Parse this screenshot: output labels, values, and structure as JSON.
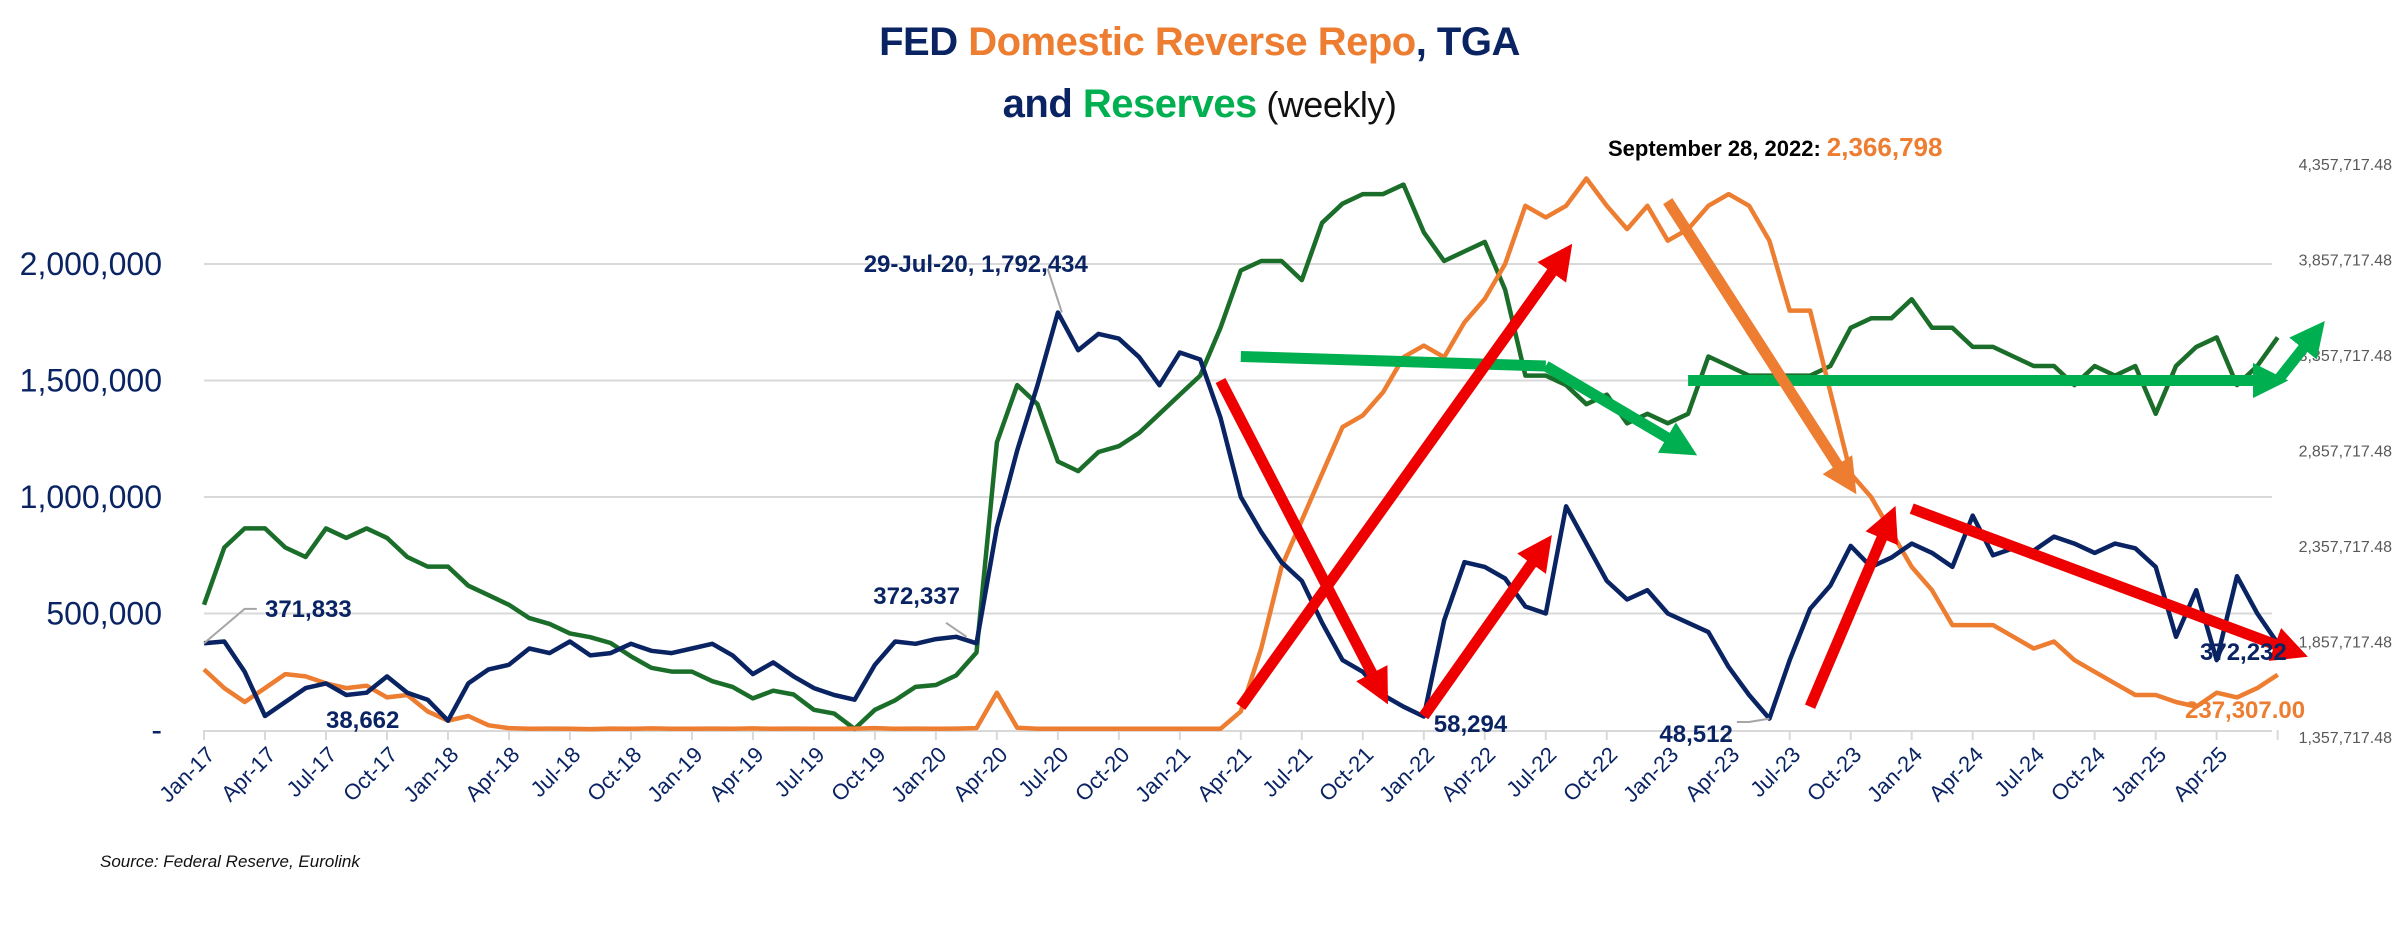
{
  "title": {
    "line1": [
      {
        "text": "FED ",
        "color": "navy"
      },
      {
        "text": "Domestic Reverse Repo",
        "color": "orange"
      },
      {
        "text": ",  TGA",
        "color": "navy"
      }
    ],
    "line2": [
      {
        "text": "and ",
        "color": "navy"
      },
      {
        "text": "Reserves",
        "color": "green"
      },
      {
        "text": " (weekly)",
        "color": "weekly"
      }
    ]
  },
  "source": "Source: Federal Reserve, Eurolink",
  "peak_annotation": {
    "label": "September 28, 2022:",
    "value": "2,366,798"
  },
  "colors": {
    "tga": "#0a2463",
    "rrp": "#ed7d31",
    "reserves": "#1b6e2a",
    "arrow_red": "#ee0000",
    "arrow_green": "#00b050",
    "arrow_orange": "#ed7d31",
    "grid": "#d9d9d9",
    "left_axis_text": "#0a2463",
    "right_axis_text": "#595959"
  },
  "chart_data": {
    "type": "line",
    "title": "FED Domestic Reverse Repo, TGA and Reserves (weekly)",
    "xlabel": "",
    "ylabel": "",
    "x_start": "Jan-17",
    "x_step": "month",
    "x_ticks": [
      "Jan-17",
      "Apr-17",
      "Jul-17",
      "Oct-17",
      "Jan-18",
      "Apr-18",
      "Jul-18",
      "Oct-18",
      "Jan-19",
      "Apr-19",
      "Jul-19",
      "Oct-19",
      "Jan-20",
      "Apr-20",
      "Jul-20",
      "Oct-20",
      "Jan-21",
      "Apr-21",
      "Jul-21",
      "Oct-21",
      "Jan-22",
      "Apr-22",
      "Jul-22",
      "Oct-22",
      "Jan-23",
      "Apr-23",
      "Jul-23",
      "Oct-23",
      "Jan-24",
      "Apr-24",
      "Jul-24",
      "Oct-24",
      "Jan-25",
      "Apr-25"
    ],
    "y_left": {
      "ticks": [
        0,
        500000,
        1000000,
        1500000,
        2000000
      ],
      "tick_labels": [
        "-",
        "500,000",
        "1,000,000",
        "1,500,000",
        "2,000,000"
      ],
      "range": [
        0,
        2000000
      ]
    },
    "y_right": {
      "ticks": [
        1357717.48,
        1857717.48,
        2357717.48,
        2857717.48,
        3357717.48,
        3857717.48,
        4357717.48
      ],
      "tick_labels": [
        "1,357,717.48",
        "1,857,717.48",
        "2,357,717.48",
        "2,857,717.48",
        "3,357,717.48",
        "3,857,717.48",
        "4,357,717.48"
      ],
      "range": [
        1357717.48,
        4357717.48
      ]
    },
    "grid": true,
    "legend": "none (colored title text)",
    "series": [
      {
        "name": "TGA",
        "axis": "left",
        "color": "#0a2463",
        "values": [
          372000,
          380000,
          250000,
          60000,
          120000,
          180000,
          200000,
          150000,
          160000,
          230000,
          160000,
          130000,
          40000,
          200000,
          260000,
          280000,
          350000,
          330000,
          380000,
          320000,
          330000,
          370000,
          340000,
          330000,
          350000,
          370000,
          320000,
          240000,
          290000,
          230000,
          180000,
          150000,
          130000,
          280000,
          380000,
          370000,
          390000,
          400000,
          372000,
          870000,
          1200000,
          1480000,
          1792000,
          1630000,
          1700000,
          1680000,
          1600000,
          1480000,
          1620000,
          1590000,
          1340000,
          1000000,
          850000,
          720000,
          640000,
          460000,
          300000,
          250000,
          150000,
          100000,
          58000,
          470000,
          720000,
          700000,
          650000,
          530000,
          500000,
          960000,
          800000,
          640000,
          560000,
          600000,
          500000,
          460000,
          420000,
          270000,
          150000,
          49000,
          300000,
          520000,
          620000,
          790000,
          700000,
          740000,
          800000,
          760000,
          700000,
          920000,
          750000,
          780000,
          770000,
          830000,
          800000,
          760000,
          800000,
          780000,
          700000,
          400000,
          600000,
          300000,
          660000,
          500000,
          372000
        ]
      },
      {
        "name": "Domestic Reverse Repo",
        "axis": "left",
        "color": "#ed7d31",
        "values": [
          260000,
          180000,
          120000,
          180000,
          240000,
          230000,
          200000,
          180000,
          190000,
          140000,
          150000,
          80000,
          40000,
          60000,
          20000,
          8000,
          5000,
          6000,
          5000,
          4000,
          6000,
          5000,
          7000,
          5000,
          5000,
          6000,
          5000,
          7000,
          5000,
          6000,
          5000,
          5000,
          6000,
          8000,
          5000,
          6000,
          5000,
          6000,
          8000,
          160000,
          10000,
          5000,
          5000,
          5000,
          5000,
          5000,
          5000,
          5000,
          5000,
          5000,
          5000,
          80000,
          350000,
          700000,
          900000,
          1100000,
          1300000,
          1350000,
          1450000,
          1600000,
          1650000,
          1600000,
          1750000,
          1850000,
          2000000,
          2250000,
          2200000,
          2250000,
          2366798,
          2250000,
          2150000,
          2250000,
          2100000,
          2150000,
          2250000,
          2300000,
          2250000,
          2100000,
          1800000,
          1800000,
          1450000,
          1100000,
          1000000,
          850000,
          700000,
          600000,
          450000,
          450000,
          450000,
          400000,
          350000,
          380000,
          300000,
          250000,
          200000,
          150000,
          150000,
          120000,
          100000,
          160000,
          140000,
          180000,
          237307
        ]
      },
      {
        "name": "Reserves",
        "axis": "right",
        "color": "#1b6e2a",
        "values": [
          2050000,
          2350000,
          2450000,
          2450000,
          2350000,
          2300000,
          2450000,
          2400000,
          2450000,
          2400000,
          2300000,
          2250000,
          2250000,
          2150000,
          2100000,
          2050000,
          1980000,
          1950000,
          1900000,
          1880000,
          1850000,
          1780000,
          1720000,
          1700000,
          1700000,
          1650000,
          1620000,
          1560000,
          1600000,
          1580000,
          1500000,
          1480000,
          1400000,
          1500000,
          1550000,
          1620000,
          1630000,
          1680000,
          1800000,
          2900000,
          3200000,
          3100000,
          2800000,
          2750000,
          2850000,
          2880000,
          2950000,
          3050000,
          3150000,
          3250000,
          3500000,
          3800000,
          3850000,
          3850000,
          3750000,
          4050000,
          4150000,
          4200000,
          4200000,
          4250000,
          4000000,
          3850000,
          3900000,
          3950000,
          3700000,
          3250000,
          3250000,
          3200000,
          3100000,
          3150000,
          3000000,
          3050000,
          3000000,
          3050000,
          3350000,
          3300000,
          3250000,
          3250000,
          3250000,
          3250000,
          3300000,
          3500000,
          3550000,
          3550000,
          3650000,
          3500000,
          3500000,
          3400000,
          3400000,
          3350000,
          3300000,
          3300000,
          3200000,
          3300000,
          3250000,
          3300000,
          3050000,
          3300000,
          3400000,
          3450000,
          3200000,
          3300000,
          3450000
        ]
      }
    ],
    "annotations": [
      {
        "text": "371,833",
        "series": "TGA",
        "x": "Jan-17"
      },
      {
        "text": "38,662",
        "series": "TGA",
        "x": "Jan-18"
      },
      {
        "text": "372,337",
        "series": "TGA",
        "x": "Mar-20"
      },
      {
        "text": "29-Jul-20, 1,792,434",
        "series": "TGA",
        "x": "Jul-20"
      },
      {
        "text": "58,294",
        "series": "TGA",
        "x": "Jan-22"
      },
      {
        "text": "48,512",
        "series": "TGA",
        "x": "Jun-23"
      },
      {
        "text": "372,232",
        "series": "TGA",
        "x": "Jul-25"
      },
      {
        "text": "237,307.00",
        "series": "Domestic Reverse Repo",
        "x": "Jul-25"
      },
      {
        "text": "September 28, 2022: 2,366,798",
        "series": "Domestic Reverse Repo",
        "x": "Sep-22"
      }
    ],
    "trend_arrows": [
      {
        "color": "green",
        "from": [
          "Apr-21",
          3350000,
          "right"
        ],
        "to": [
          "Jul-22",
          3300000,
          "right"
        ],
        "note": "flat then"
      },
      {
        "color": "green",
        "from": [
          "Jul-22",
          3300000,
          "right"
        ],
        "to": [
          "Feb-23",
          2860000,
          "right"
        ],
        "note": "down"
      },
      {
        "color": "green",
        "from": [
          "Feb-23",
          1500000,
          "left"
        ],
        "to": [
          "Jul-25",
          1500000,
          "left"
        ],
        "note": "flat"
      },
      {
        "color": "green",
        "from": [
          "Jul-25",
          1500000,
          "left"
        ],
        "to": [
          "Sep-25",
          1720000,
          "left"
        ],
        "note": "up"
      },
      {
        "color": "red",
        "from": [
          "Mar-21",
          1500000
        ],
        "to": [
          "Nov-21",
          150000
        ],
        "note": "TGA down"
      },
      {
        "color": "red",
        "from": [
          "Apr-21",
          100000
        ],
        "to": [
          "Aug-22",
          2050000
        ],
        "note": "RRP up"
      },
      {
        "color": "red",
        "from": [
          "Jan-22",
          60000
        ],
        "to": [
          "Jul-22",
          800000
        ],
        "note": "TGA up"
      },
      {
        "color": "orange",
        "from": [
          "Jan-23",
          2270000
        ],
        "to": [
          "Oct-23",
          1050000
        ],
        "note": "RRP down"
      },
      {
        "color": "red",
        "from": [
          "Aug-23",
          100000
        ],
        "to": [
          "Dec-23",
          920000
        ],
        "note": "TGA up"
      },
      {
        "color": "red",
        "from": [
          "Jan-24",
          950000
        ],
        "to": [
          "Aug-25",
          330000
        ],
        "note": "TGA down"
      }
    ]
  }
}
